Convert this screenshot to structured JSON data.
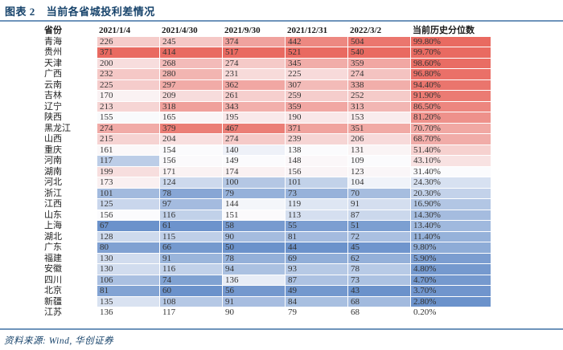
{
  "figure": {
    "number_label": "图表 2",
    "title": "当前各省城投利差情况",
    "source": "资料来源: Wind, 华创证券"
  },
  "colors": {
    "title_navy": "#17436b",
    "rule_blue": "#6e94bb",
    "header_text": "#1a1a1a",
    "cell_text": "#333333",
    "scale_red": "#e96a61",
    "scale_mid": "#fbfbfd",
    "scale_blue": "#6b92cb"
  },
  "chart_data": {
    "type": "heatmap",
    "title": "当前各省城投利差情况",
    "columns": [
      "省份",
      "2021/1/4",
      "2021/4/30",
      "2021/9/30",
      "2021/12/31",
      "2022/3/2",
      "当前历史分位数"
    ],
    "colorscale_note": "per-column 3-color scale over shaded rows: min=blue, median=white, max=red; percentile column has its own scale; unshaded rows have no fill",
    "rows": [
      {
        "province": "青海",
        "values": [
          226,
          245,
          374,
          442,
          504
        ],
        "percentile": 99.8,
        "shaded": true
      },
      {
        "province": "贵州",
        "values": [
          371,
          414,
          517,
          521,
          540
        ],
        "percentile": 99.7,
        "shaded": true
      },
      {
        "province": "天津",
        "values": [
          200,
          268,
          274,
          345,
          359
        ],
        "percentile": 98.6,
        "shaded": true
      },
      {
        "province": "广西",
        "values": [
          232,
          280,
          231,
          225,
          274
        ],
        "percentile": 96.8,
        "shaded": true
      },
      {
        "province": "云南",
        "values": [
          225,
          297,
          362,
          307,
          338
        ],
        "percentile": 94.4,
        "shaded": true
      },
      {
        "province": "吉林",
        "values": [
          170,
          209,
          261,
          259,
          252
        ],
        "percentile": 91.9,
        "shaded": true
      },
      {
        "province": "辽宁",
        "values": [
          213,
          318,
          343,
          359,
          313
        ],
        "percentile": 86.5,
        "shaded": true
      },
      {
        "province": "陕西",
        "values": [
          155,
          165,
          195,
          190,
          153
        ],
        "percentile": 81.2,
        "shaded": true
      },
      {
        "province": "黑龙江",
        "values": [
          274,
          379,
          467,
          371,
          351
        ],
        "percentile": 70.7,
        "shaded": true
      },
      {
        "province": "山西",
        "values": [
          215,
          204,
          274,
          239,
          206
        ],
        "percentile": 68.7,
        "shaded": true
      },
      {
        "province": "重庆",
        "values": [
          161,
          154,
          140,
          138,
          131
        ],
        "percentile": 51.4,
        "shaded": true
      },
      {
        "province": "河南",
        "values": [
          117,
          156,
          149,
          148,
          109
        ],
        "percentile": 43.1,
        "shaded": true
      },
      {
        "province": "湖南",
        "values": [
          199,
          171,
          174,
          156,
          123
        ],
        "percentile": 31.4,
        "shaded": true
      },
      {
        "province": "河北",
        "values": [
          173,
          124,
          100,
          101,
          104
        ],
        "percentile": 24.3,
        "shaded": true
      },
      {
        "province": "浙江",
        "values": [
          101,
          78,
          79,
          73,
          70
        ],
        "percentile": 20.3,
        "shaded": true
      },
      {
        "province": "江西",
        "values": [
          125,
          97,
          144,
          119,
          91
        ],
        "percentile": 16.9,
        "shaded": true
      },
      {
        "province": "山东",
        "values": [
          156,
          116,
          151,
          113,
          87
        ],
        "percentile": 14.3,
        "shaded": true
      },
      {
        "province": "上海",
        "values": [
          67,
          61,
          58,
          55,
          51
        ],
        "percentile": 13.4,
        "shaded": true
      },
      {
        "province": "湖北",
        "values": [
          128,
          115,
          90,
          81,
          72
        ],
        "percentile": 11.4,
        "shaded": true
      },
      {
        "province": "广东",
        "values": [
          80,
          66,
          50,
          44,
          45
        ],
        "percentile": 9.8,
        "shaded": true
      },
      {
        "province": "福建",
        "values": [
          130,
          91,
          78,
          69,
          62
        ],
        "percentile": 5.9,
        "shaded": true
      },
      {
        "province": "安徽",
        "values": [
          130,
          116,
          94,
          93,
          78
        ],
        "percentile": 4.8,
        "shaded": true
      },
      {
        "province": "四川",
        "values": [
          106,
          74,
          136,
          87,
          73
        ],
        "percentile": 4.7,
        "shaded": true
      },
      {
        "province": "北京",
        "values": [
          81,
          60,
          56,
          49,
          43
        ],
        "percentile": 3.7,
        "shaded": true
      },
      {
        "province": "新疆",
        "values": [
          135,
          108,
          91,
          84,
          68
        ],
        "percentile": 2.8,
        "shaded": true
      },
      {
        "province": "江苏",
        "values": [
          136,
          117,
          90,
          79,
          68
        ],
        "percentile": 0.2,
        "shaded": false
      }
    ]
  }
}
